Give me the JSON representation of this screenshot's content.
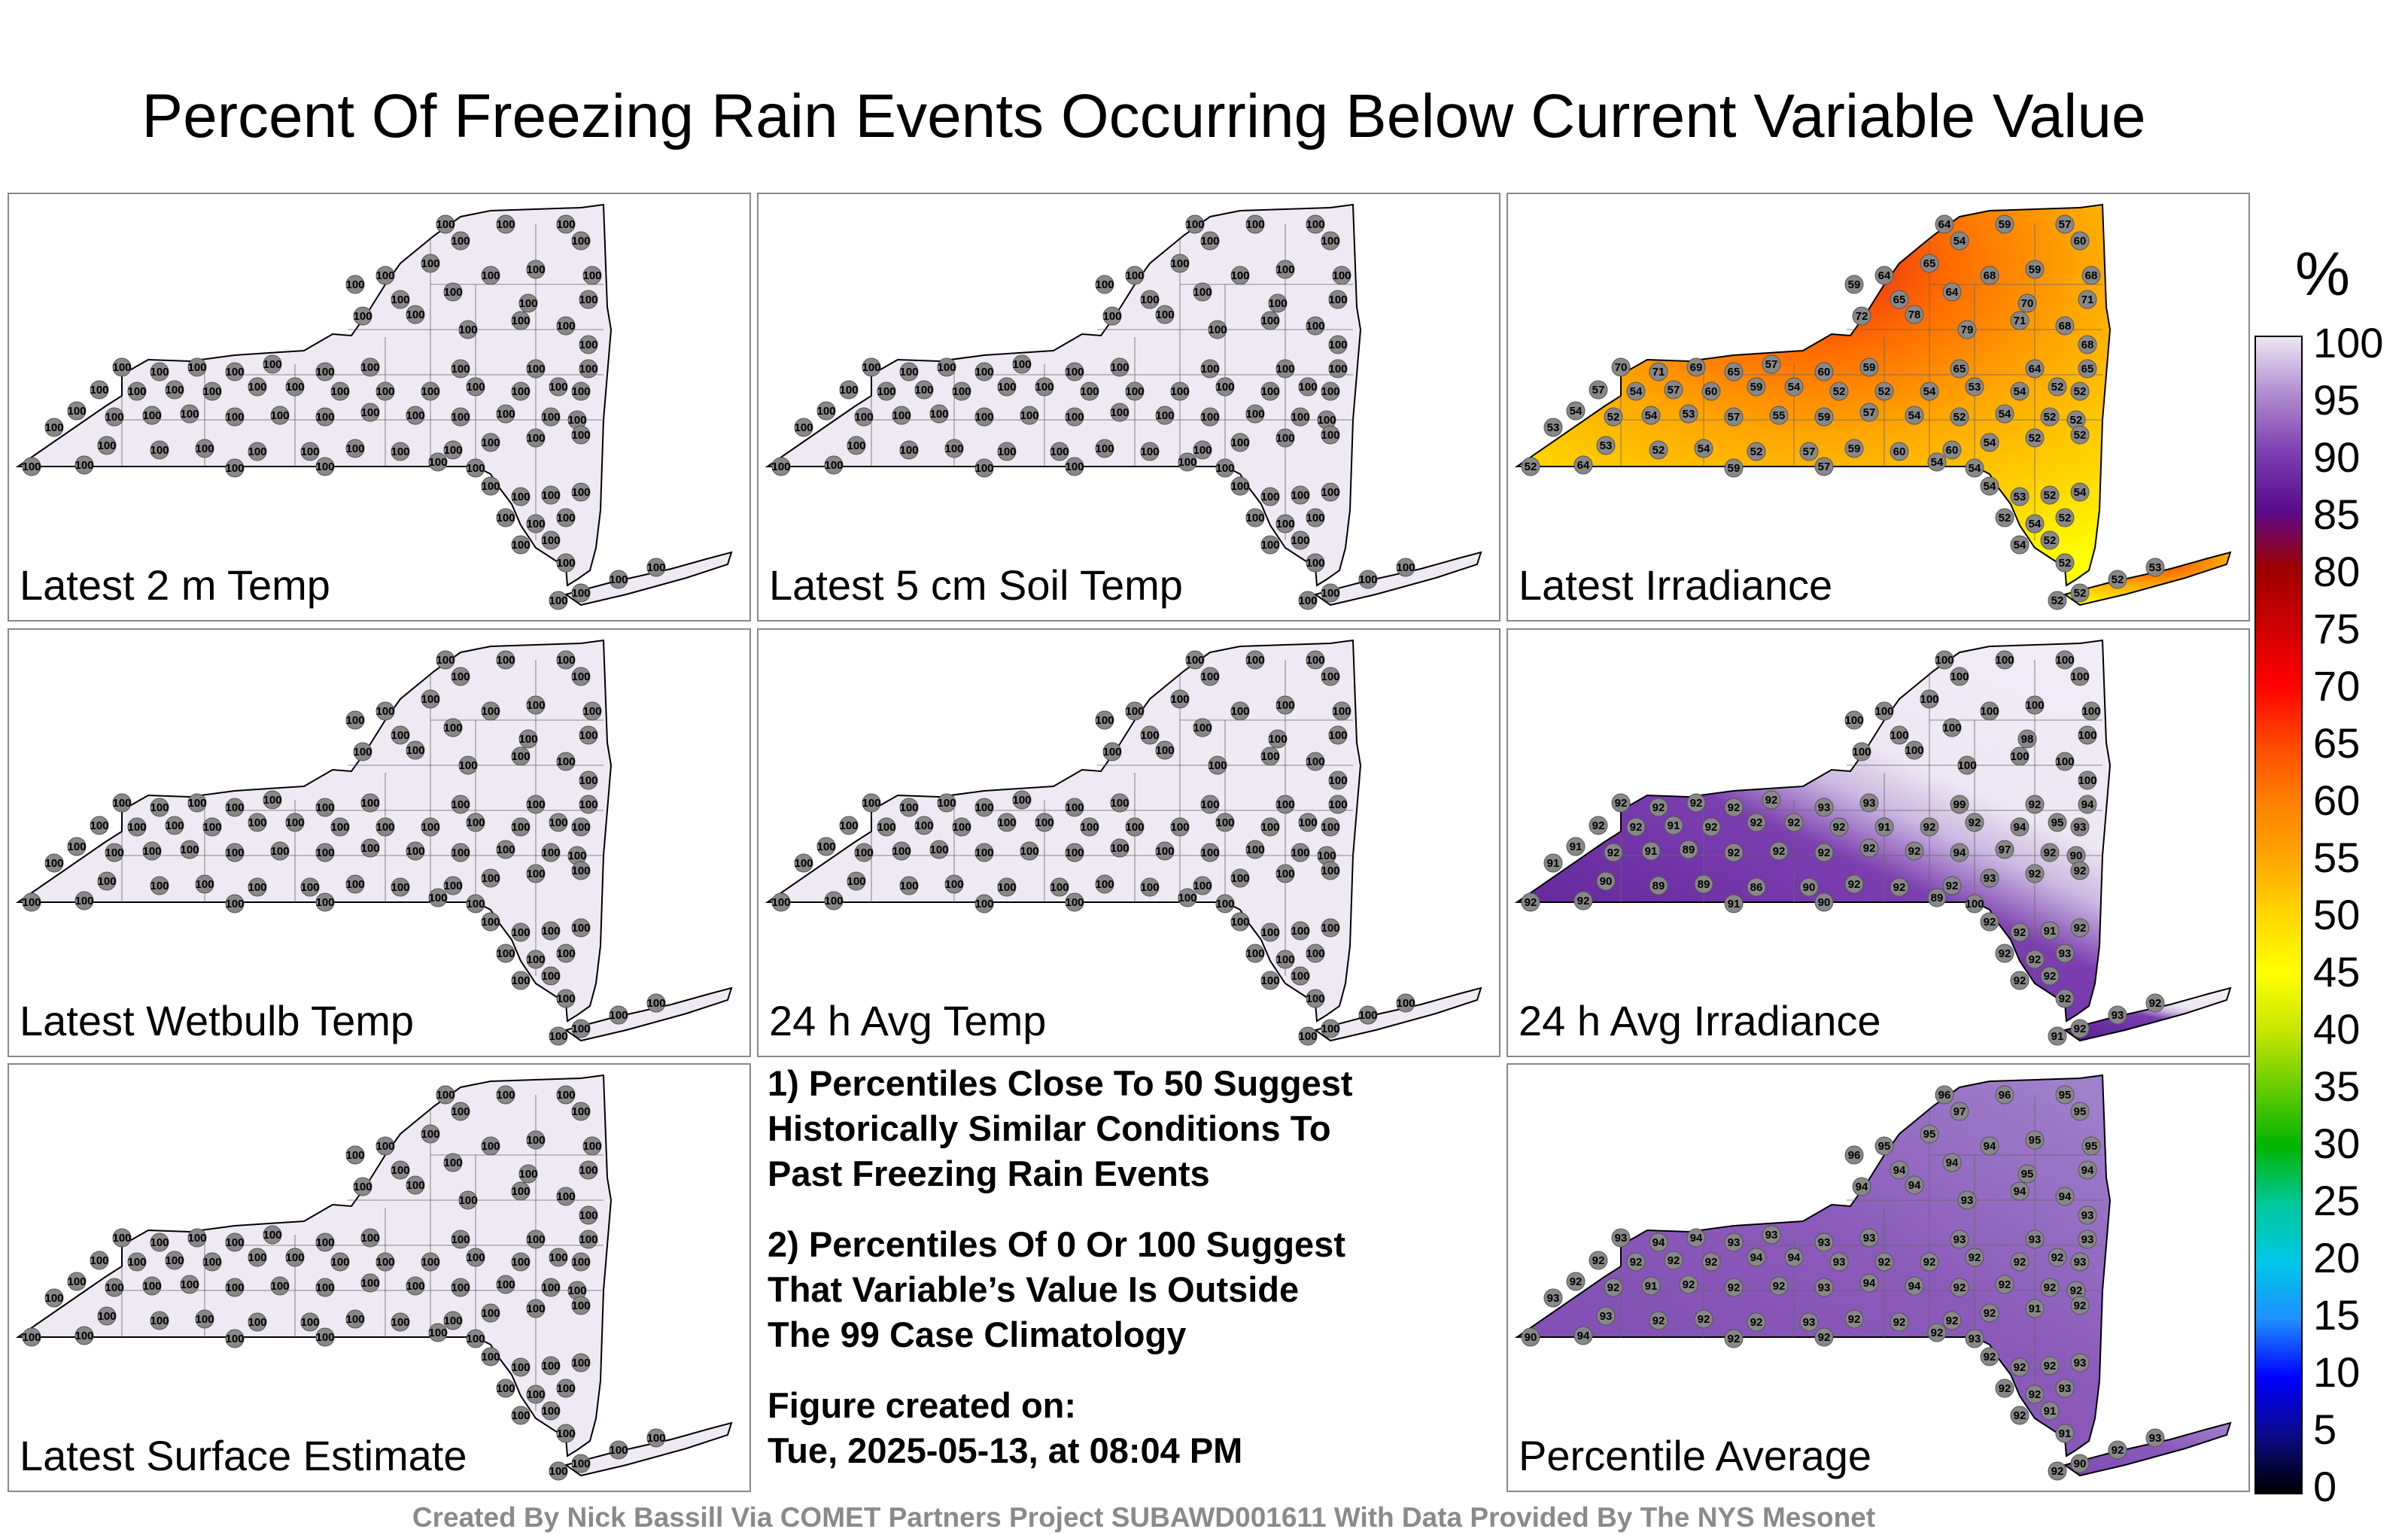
{
  "title": "Percent Of Freezing Rain Events Occurring Below Current Variable Value",
  "panels": [
    {
      "label": "Latest 2 m Temp",
      "mode": "uniform",
      "value": 100,
      "color": "#efe9f4"
    },
    {
      "label": "Latest 5 cm Soil Temp",
      "mode": "uniform",
      "value": 100,
      "color": "#efe9f4"
    },
    {
      "label": "Latest Irradiance",
      "mode": "irradiance"
    },
    {
      "label": "Latest Wetbulb Temp",
      "mode": "uniform",
      "value": 100,
      "color": "#efe9f4"
    },
    {
      "label": "24 h Avg Temp",
      "mode": "uniform",
      "value": 100,
      "color": "#efe9f4"
    },
    {
      "label": "24 h Avg Irradiance",
      "mode": "avgirr"
    },
    {
      "label": "Latest Surface Estimate",
      "mode": "uniform",
      "value": 100,
      "color": "#efe9f4"
    },
    {
      "label": "Percentile Average",
      "mode": "pctavg"
    }
  ],
  "notes": [
    "1) Percentiles Close To 50 Suggest\nHistorically Similar Conditions To\nPast Freezing Rain Events",
    "2) Percentiles Of 0 Or 100 Suggest\nThat Variable’s Value Is Outside\nThe 99 Case Climatology",
    "Figure created on:\nTue, 2025-05-13, at 08:04 PM"
  ],
  "credit": "Created By Nick Bassill Via COMET Partners Project SUBAWD001611 With Data Provided By The NYS Mesonet",
  "colorbar": {
    "unit": "%",
    "ticks": [
      "0",
      "5",
      "10",
      "15",
      "20",
      "25",
      "30",
      "35",
      "40",
      "45",
      "50",
      "55",
      "60",
      "65",
      "70",
      "75",
      "80",
      "85",
      "90",
      "95",
      "100"
    ],
    "colors": [
      "#000000",
      "#0a0a8a",
      "#0000ff",
      "#1e90ff",
      "#00c8e8",
      "#00c89a",
      "#00b400",
      "#66cc00",
      "#c8e600",
      "#ffff00",
      "#ffd700",
      "#ffa500",
      "#ff7f00",
      "#ff4500",
      "#ff0000",
      "#cc0000",
      "#9e0000",
      "#5a0a8c",
      "#7b3fb0",
      "#b08ad0",
      "#ece6f2"
    ]
  },
  "legend_icons": [
    "station-marker-icon"
  ]
}
